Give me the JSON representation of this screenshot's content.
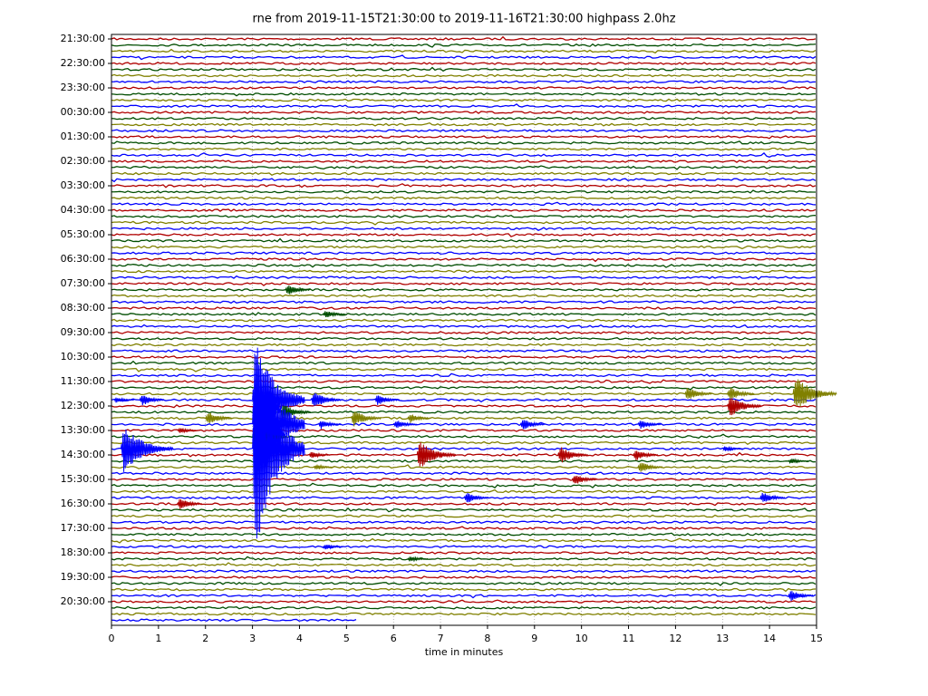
{
  "chart_data": {
    "type": "helicorder",
    "title": "rne from 2019-11-15T21:30:00 to 2019-11-16T21:30:00 highpass 2.0hz",
    "xlabel": "time in minutes",
    "xlim": [
      0,
      15
    ],
    "xticks": [
      0,
      1,
      2,
      3,
      4,
      5,
      6,
      7,
      8,
      9,
      10,
      11,
      12,
      13,
      14,
      15
    ],
    "grid": true,
    "colors": [
      "#b00000",
      "#004d00",
      "#808000",
      "#0000ff"
    ],
    "trace_end": 5.25,
    "categories": [
      "21:30:00",
      null,
      null,
      null,
      "22:30:00",
      null,
      null,
      null,
      "23:30:00",
      null,
      null,
      null,
      "00:30:00",
      null,
      null,
      null,
      "01:30:00",
      null,
      null,
      null,
      "02:30:00",
      null,
      null,
      null,
      "03:30:00",
      null,
      null,
      null,
      "04:30:00",
      null,
      null,
      null,
      "05:30:00",
      null,
      null,
      null,
      "06:30:00",
      null,
      null,
      null,
      "07:30:00",
      null,
      null,
      null,
      "08:30:00",
      null,
      null,
      null,
      "09:30:00",
      null,
      null,
      null,
      "10:30:00",
      null,
      null,
      null,
      "11:30:00",
      null,
      null,
      null,
      "12:30:00",
      null,
      null,
      null,
      "13:30:00",
      null,
      null,
      null,
      "14:30:00",
      null,
      null,
      null,
      "15:30:00",
      null,
      null,
      null,
      "16:30:00",
      null,
      null,
      null,
      "17:30:00",
      null,
      null,
      null,
      "18:30:00",
      null,
      null,
      null,
      "19:30:00",
      null,
      null,
      null,
      "20:30:00",
      null,
      null,
      null
    ],
    "events": [
      {
        "row": 41,
        "x": 3.7,
        "amp": 1
      },
      {
        "row": 45,
        "x": 4.5,
        "amp": 0.7
      },
      {
        "row": 58,
        "x": 12.2,
        "amp": 1.2
      },
      {
        "row": 58,
        "x": 13.1,
        "amp": 1.2
      },
      {
        "row": 58,
        "x": 14.5,
        "amp": 3
      },
      {
        "row": 59,
        "x": 0.05,
        "amp": 0.5
      },
      {
        "row": 59,
        "x": 0.6,
        "amp": 1
      },
      {
        "row": 59,
        "x": 3.0,
        "amp": 10
      },
      {
        "row": 59,
        "x": 4.25,
        "amp": 1.5
      },
      {
        "row": 59,
        "x": 5.6,
        "amp": 1
      },
      {
        "row": 60,
        "x": 13.1,
        "amp": 2
      },
      {
        "row": 61,
        "x": 3.6,
        "amp": 1.5
      },
      {
        "row": 62,
        "x": 2.0,
        "amp": 1.2
      },
      {
        "row": 62,
        "x": 5.1,
        "amp": 1.5
      },
      {
        "row": 62,
        "x": 6.3,
        "amp": 0.8
      },
      {
        "row": 63,
        "x": 3.0,
        "amp": 14
      },
      {
        "row": 63,
        "x": 4.4,
        "amp": 0.8
      },
      {
        "row": 63,
        "x": 6.0,
        "amp": 0.8
      },
      {
        "row": 63,
        "x": 8.7,
        "amp": 1
      },
      {
        "row": 63,
        "x": 11.2,
        "amp": 0.8
      },
      {
        "row": 64,
        "x": 1.4,
        "amp": 0.5
      },
      {
        "row": 65,
        "x": 3.0,
        "amp": 2
      },
      {
        "row": 67,
        "x": 0.2,
        "amp": 4
      },
      {
        "row": 67,
        "x": 3.0,
        "amp": 18
      },
      {
        "row": 67,
        "x": 13.0,
        "amp": 0.5
      },
      {
        "row": 68,
        "x": 4.2,
        "amp": 0.6
      },
      {
        "row": 68,
        "x": 6.5,
        "amp": 2.5
      },
      {
        "row": 68,
        "x": 9.5,
        "amp": 1.5
      },
      {
        "row": 68,
        "x": 11.1,
        "amp": 1
      },
      {
        "row": 69,
        "x": 14.4,
        "amp": 0.5
      },
      {
        "row": 70,
        "x": 4.3,
        "amp": 0.5
      },
      {
        "row": 70,
        "x": 11.2,
        "amp": 1
      },
      {
        "row": 72,
        "x": 9.8,
        "amp": 1
      },
      {
        "row": 75,
        "x": 7.5,
        "amp": 1
      },
      {
        "row": 75,
        "x": 13.8,
        "amp": 1
      },
      {
        "row": 76,
        "x": 1.4,
        "amp": 1
      },
      {
        "row": 83,
        "x": 4.5,
        "amp": 0.5
      },
      {
        "row": 85,
        "x": 6.3,
        "amp": 0.5
      },
      {
        "row": 91,
        "x": 14.4,
        "amp": 1
      }
    ]
  }
}
